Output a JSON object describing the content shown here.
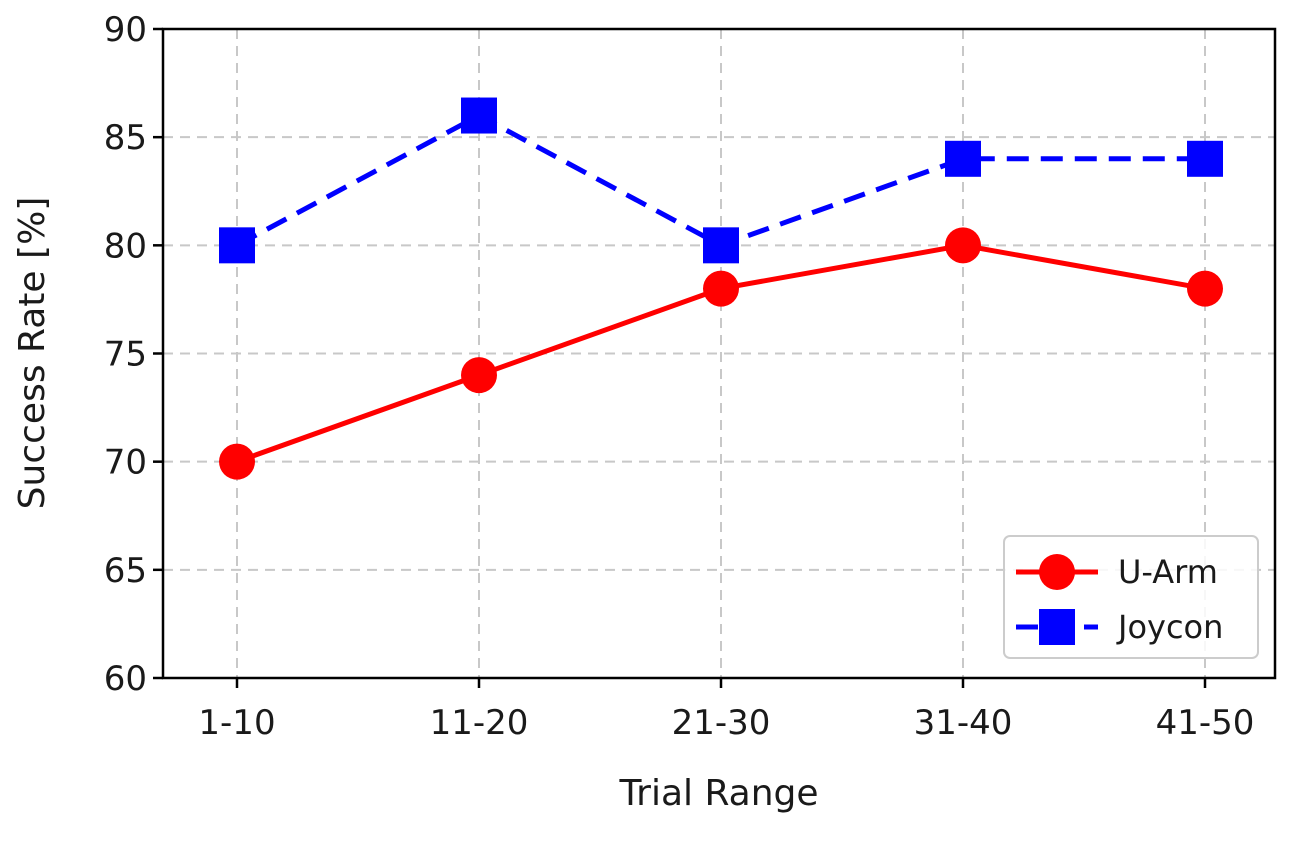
{
  "chart_data": {
    "type": "line",
    "categories": [
      "1-10",
      "11-20",
      "21-30",
      "31-40",
      "41-50"
    ],
    "series": [
      {
        "name": "U-Arm",
        "values": [
          70,
          74,
          78,
          80,
          78
        ],
        "color": "#ff0000",
        "marker": "circle",
        "line_style": "solid"
      },
      {
        "name": "Joycon",
        "values": [
          80,
          86,
          80,
          84,
          84
        ],
        "color": "#0000ff",
        "marker": "square",
        "line_style": "dashed"
      }
    ],
    "xlabel": "Trial Range",
    "ylabel": "Success Rate [%]",
    "ylim": [
      60,
      90
    ],
    "yticks": [
      60,
      65,
      70,
      75,
      80,
      85,
      90
    ],
    "grid": true,
    "legend_position": "lower-right"
  }
}
